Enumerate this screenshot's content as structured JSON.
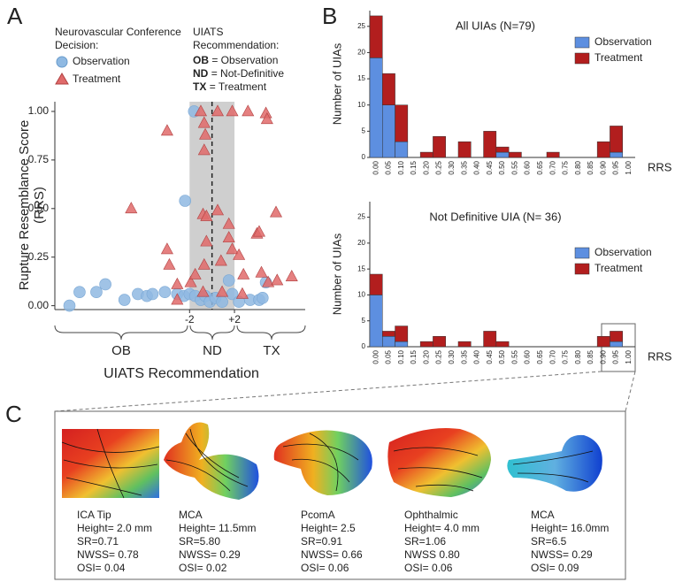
{
  "panel_labels": [
    "A",
    "B",
    "C"
  ],
  "chart_data": [
    {
      "type": "scatter",
      "xlabel": "UIATS Recommendation",
      "ylabel": [
        "Rupture Resemblance Score",
        "(RRS)"
      ],
      "xlim": [
        -14,
        8.3
      ],
      "ylim": [
        -0.02,
        1.05
      ],
      "xticks": [
        -2,
        {
          "value": 2,
          "label": "+2"
        }
      ],
      "yticks": [
        {
          "value": 0,
          "label": "0.00"
        },
        0.25,
        {
          "value": 0.5,
          "label": "0.50"
        },
        0.75,
        {
          "value": 1,
          "label": "1.00"
        }
      ],
      "group_labels": [
        "OB",
        "ND",
        "TX"
      ],
      "legend_title": [
        "Neurovascular Conference",
        "Decision:"
      ],
      "key_title": [
        "UIATS",
        "Recommendation:"
      ],
      "key": [
        {
          "abbr": "OB",
          "text": "= Observation"
        },
        {
          "abbr": "ND",
          "text": "= Not-Definitive"
        },
        {
          "abbr": "TX",
          "text": "= Treatment"
        }
      ],
      "series": [
        {
          "name": "Observation",
          "color": "#8fb9e2",
          "marker": "circle",
          "x": [
            -12.7,
            -11.8,
            -10.3,
            -9.5,
            -7.8,
            -6.6,
            -5.8,
            -5.3,
            -4.2,
            -3.1,
            -2.4,
            -2.5,
            -2.0,
            -1.6,
            -1.5,
            -1.0,
            -0.6,
            -0.2,
            0.3,
            0.9,
            1.5,
            1.8,
            2.4,
            3.4,
            4.2,
            4.8,
            4.5
          ],
          "values": [
            0.0,
            0.07,
            0.07,
            0.11,
            0.03,
            0.06,
            0.05,
            0.06,
            0.07,
            0.06,
            0.54,
            0.05,
            0.06,
            1.0,
            0.05,
            0.03,
            0.05,
            0.02,
            0.04,
            0.02,
            0.13,
            0.06,
            0.02,
            0.03,
            0.03,
            0.12,
            0.04
          ]
        },
        {
          "name": "Treatment",
          "color": "#e06a6a",
          "marker": "triangle",
          "x": [
            -7.2,
            -4.0,
            -4.0,
            -3.8,
            -3.1,
            -3.1,
            -1.9,
            -1.5,
            -1.0,
            -0.7,
            -0.6,
            -0.7,
            -0.8,
            -0.5,
            -0.5,
            -0.7,
            -0.8,
            0.5,
            0.5,
            0.8,
            0.9,
            1.5,
            1.5,
            1.8,
            1.8,
            2.4,
            2.7,
            3.2,
            4.0,
            4.2,
            4.8,
            4.9,
            5.7,
            5.0,
            5.8,
            7.1,
            2.8,
            4.4
          ],
          "values": [
            0.5,
            0.9,
            0.29,
            0.21,
            0.11,
            0.03,
            0.12,
            0.16,
            1.0,
            0.94,
            0.88,
            0.8,
            0.47,
            0.46,
            0.33,
            0.21,
            0.07,
            1.0,
            0.49,
            0.23,
            0.07,
            0.42,
            0.35,
            0.29,
            1.0,
            0.26,
            0.06,
            1.0,
            0.37,
            0.38,
            0.99,
            0.96,
            0.48,
            0.12,
            0.13,
            0.15,
            0.16,
            0.17
          ]
        }
      ]
    },
    {
      "type": "bar",
      "stacked": true,
      "title": "All UIAs (N=79)",
      "ylabel": "Number of UIAs",
      "xlabel": "RRS",
      "categories": [
        "0.00",
        "0.05",
        "0.10",
        "0.15",
        "0.20",
        "0.25",
        "0.30",
        "0.35",
        "0.40",
        "0.45",
        "0.50",
        "0.55",
        "0.60",
        "0.65",
        "0.70",
        "0.75",
        "0.80",
        "0.85",
        "0.90",
        "0.95",
        "1.00"
      ],
      "ylim": [
        0,
        28
      ],
      "yticks": [
        0,
        5,
        10,
        15,
        20,
        25
      ],
      "series": [
        {
          "name": "Observation",
          "color": "#5d8fe0",
          "values": [
            19,
            10,
            3,
            0,
            0,
            0,
            0,
            0,
            0,
            0,
            1,
            0,
            0,
            0,
            0,
            0,
            0,
            0,
            0,
            1,
            0
          ]
        },
        {
          "name": "Treatment",
          "color": "#b21e1e",
          "values": [
            8,
            6,
            7,
            0,
            1,
            4,
            0,
            3,
            0,
            5,
            1,
            1,
            0,
            0,
            1,
            0,
            0,
            0,
            3,
            5,
            0
          ]
        }
      ]
    },
    {
      "type": "bar",
      "stacked": true,
      "title": "Not Definitive UIA (N= 36)",
      "ylabel": "Number of UIAs",
      "xlabel": "RRS",
      "categories": [
        "0.00",
        "0.05",
        "0.10",
        "0.15",
        "0.20",
        "0.25",
        "0.30",
        "0.35",
        "0.40",
        "0.45",
        "0.50",
        "0.55",
        "0.60",
        "0.65",
        "0.70",
        "0.75",
        "0.80",
        "0.85",
        "0.90",
        "0.95",
        "1.00"
      ],
      "ylim": [
        0,
        28
      ],
      "yticks": [
        0,
        5,
        10,
        15,
        20,
        25
      ],
      "series": [
        {
          "name": "Observation",
          "color": "#5d8fe0",
          "values": [
            10,
            2,
            1,
            0,
            0,
            0,
            0,
            0,
            0,
            0,
            0,
            0,
            0,
            0,
            0,
            0,
            0,
            0,
            0,
            1,
            0
          ]
        },
        {
          "name": "Treatment",
          "color": "#b21e1e",
          "values": [
            4,
            1,
            3,
            0,
            1,
            2,
            0,
            1,
            0,
            3,
            1,
            0,
            0,
            0,
            0,
            0,
            0,
            0,
            2,
            2,
            0
          ]
        }
      ]
    }
  ],
  "panel_c": {
    "aneurysms": [
      {
        "lines": [
          "ICA Tip",
          "Height= 2.0 mm",
          "SR=0.71",
          "NWSS= 0.78",
          "OSI= 0.04"
        ]
      },
      {
        "lines": [
          "MCA",
          "Height= 11.5mm",
          "SR=5.80",
          "NWSS= 0.29",
          "OSI= 0.02"
        ]
      },
      {
        "lines": [
          "PcomA",
          "Height= 2.5",
          "SR=0.91",
          "NWSS= 0.66",
          "OSI= 0.06"
        ]
      },
      {
        "lines": [
          "Ophthalmic",
          "Height= 4.0 mm",
          "SR=1.06",
          "NWSS 0.80",
          "OSI= 0.06"
        ]
      },
      {
        "lines": [
          "MCA",
          "Height= 16.0mm",
          "SR=6.5",
          "NWSS= 0.29",
          "OSI= 0.09"
        ]
      }
    ]
  }
}
